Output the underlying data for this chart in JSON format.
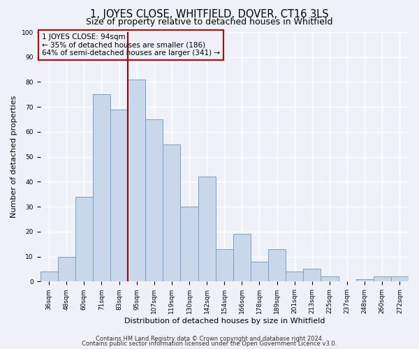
{
  "title": "1, JOYES CLOSE, WHITFIELD, DOVER, CT16 3LS",
  "subtitle": "Size of property relative to detached houses in Whitfield",
  "xlabel": "Distribution of detached houses by size in Whitfield",
  "ylabel": "Number of detached properties",
  "bar_color": "#c8d8ea",
  "bar_edge_color": "#7aa0c0",
  "bg_color": "#eef2f8",
  "grid_color": "#ffffff",
  "annotation_box_color": "#cc0000",
  "vline_color": "#990000",
  "categories": [
    "36sqm",
    "48sqm",
    "60sqm",
    "71sqm",
    "83sqm",
    "95sqm",
    "107sqm",
    "119sqm",
    "130sqm",
    "142sqm",
    "154sqm",
    "166sqm",
    "178sqm",
    "189sqm",
    "201sqm",
    "213sqm",
    "225sqm",
    "237sqm",
    "248sqm",
    "260sqm",
    "272sqm"
  ],
  "values": [
    4,
    10,
    34,
    75,
    69,
    81,
    65,
    55,
    30,
    42,
    13,
    19,
    8,
    13,
    4,
    5,
    2,
    0,
    1,
    2,
    2
  ],
  "vline_index": 5,
  "annotation_text": "1 JOYES CLOSE: 94sqm\n← 35% of detached houses are smaller (186)\n64% of semi-detached houses are larger (341) →",
  "ylim": [
    0,
    100
  ],
  "yticks": [
    0,
    10,
    20,
    30,
    40,
    50,
    60,
    70,
    80,
    90,
    100
  ],
  "footer1": "Contains HM Land Registry data © Crown copyright and database right 2024.",
  "footer2": "Contains public sector information licensed under the Open Government Licence v3.0.",
  "title_fontsize": 10.5,
  "subtitle_fontsize": 9,
  "annotation_fontsize": 7.5,
  "tick_fontsize": 6.5,
  "ylabel_fontsize": 8,
  "xlabel_fontsize": 8,
  "footer_fontsize": 6
}
